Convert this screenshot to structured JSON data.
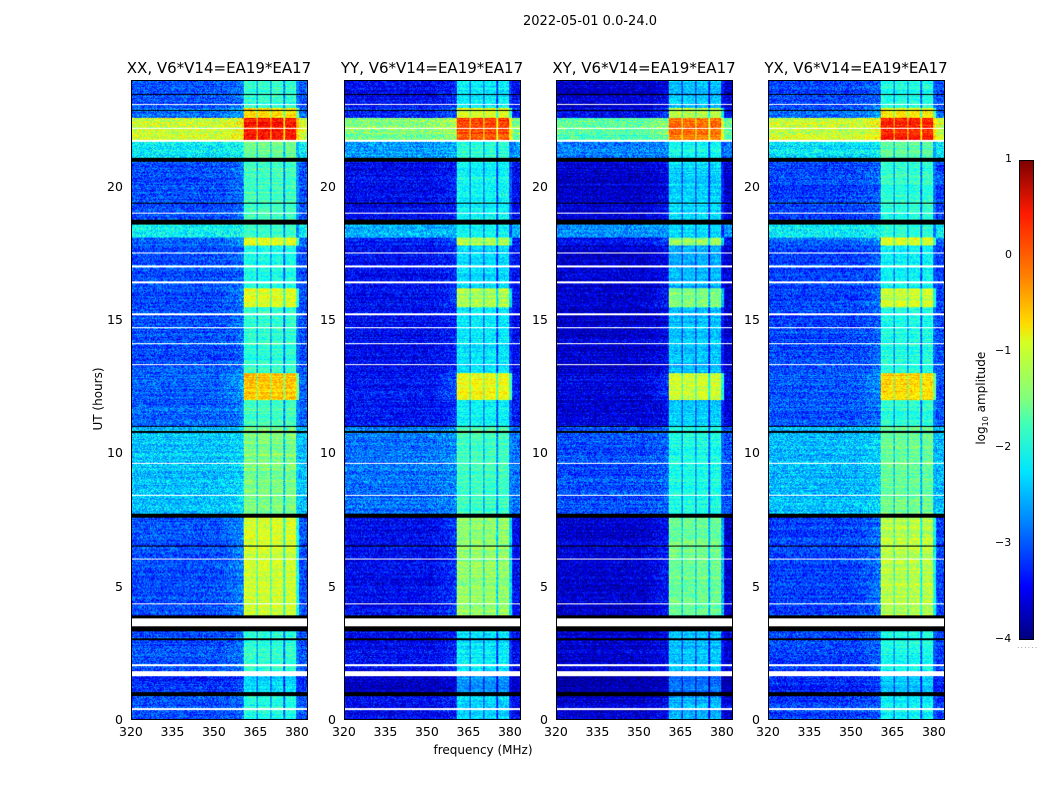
{
  "figure": {
    "suptitle": "2022-05-01 0.0-24.0",
    "xlabel": "frequency (MHz)",
    "ylabel": "UT (hours)"
  },
  "colorbar": {
    "label_prefix": "log",
    "label_sub": "10",
    "label_suffix": " amplitude",
    "range": [
      -4,
      1
    ],
    "ticks": [
      "1",
      "0",
      "−1",
      "−2",
      "−3",
      "−4"
    ],
    "tick_values": [
      1,
      0,
      -1,
      -2,
      -3,
      -4
    ],
    "colormap": "jet"
  },
  "chart_data": {
    "type": "heatmap",
    "xlim": [
      320,
      384
    ],
    "ylim": [
      0,
      24
    ],
    "x_ticks": [
      320,
      335,
      350,
      365,
      380
    ],
    "y_ticks": [
      0,
      5,
      10,
      15,
      20
    ],
    "rfi_band_MHz": [
      361,
      381
    ],
    "rfi_subbands_MHz": [
      [
        361,
        365.5
      ],
      [
        366,
        370.5
      ],
      [
        371,
        375.5
      ],
      [
        376,
        380.2
      ]
    ],
    "segments_UT": [
      {
        "t": [
          0,
          0.9
        ],
        "bg": -3.0,
        "rfi": -2.0
      },
      {
        "t": [
          1.0,
          1.6
        ],
        "bg": -3.2,
        "rfi": -2.3
      },
      {
        "t": [
          1.8,
          3.3
        ],
        "bg": -3.0,
        "rfi": -1.9
      },
      {
        "t": [
          3.9,
          7.6
        ],
        "bg": -3.0,
        "rfi": -1.1
      },
      {
        "t": [
          7.7,
          11.0
        ],
        "bg": -2.4,
        "rfi": -1.5
      },
      {
        "t": [
          11.0,
          12.0
        ],
        "bg": -2.9,
        "rfi": -1.8
      },
      {
        "t": [
          12.0,
          13.0
        ],
        "bg": -2.9,
        "rfi": -0.6
      },
      {
        "t": [
          13.0,
          15.5
        ],
        "bg": -3.0,
        "rfi": -1.9
      },
      {
        "t": [
          15.5,
          16.2
        ],
        "bg": -3.0,
        "rfi": -1.0
      },
      {
        "t": [
          16.2,
          17.8
        ],
        "bg": -3.0,
        "rfi": -2.0
      },
      {
        "t": [
          17.8,
          18.1
        ],
        "bg": -2.8,
        "rfi": -0.9
      },
      {
        "t": [
          18.1,
          18.6
        ],
        "bg": -2.1,
        "rfi": -1.8
      },
      {
        "t": [
          18.7,
          21.0
        ],
        "bg": -3.0,
        "rfi": -1.8
      },
      {
        "t": [
          21.1,
          21.7
        ],
        "bg": -2.2,
        "rfi": -1.6
      },
      {
        "t": [
          21.8,
          22.6
        ],
        "bg": -1.1,
        "rfi": 0.3
      },
      {
        "t": [
          22.6,
          23.0
        ],
        "bg": -2.8,
        "rfi": -0.7
      },
      {
        "t": [
          23.0,
          24.0
        ],
        "bg": -3.0,
        "rfi": -1.9
      }
    ],
    "flagged_UT": [
      [
        1.6,
        1.8
      ],
      [
        3.5,
        3.8
      ],
      [
        0.35,
        0.4
      ],
      [
        2.0,
        2.05
      ],
      [
        4.3,
        4.35
      ],
      [
        6.0,
        6.05
      ],
      [
        8.4,
        8.45
      ],
      [
        9.6,
        9.65
      ],
      [
        13.3,
        13.35
      ],
      [
        14.1,
        14.15
      ],
      [
        14.7,
        14.75
      ],
      [
        15.2,
        15.25
      ],
      [
        16.4,
        16.45
      ],
      [
        17.0,
        17.05
      ],
      [
        17.5,
        17.55
      ],
      [
        19.0,
        19.05
      ],
      [
        21.7,
        21.8
      ],
      [
        22.2,
        22.25
      ],
      [
        23.1,
        23.15
      ]
    ],
    "dropout_UT": [
      0.9,
      1.0,
      3.0,
      6.5,
      7.6,
      7.7,
      10.8,
      11.0,
      18.65,
      18.75,
      19.4,
      21.0,
      21.1,
      22.9,
      23.5
    ],
    "panels": [
      {
        "title": "XX, V6*V14=EA19*EA17",
        "bg_offset": 0.0,
        "rfi_offset": 0.0
      },
      {
        "title": "YY, V6*V14=EA19*EA17",
        "bg_offset": -0.4,
        "rfi_offset": -0.3
      },
      {
        "title": "XY, V6*V14=EA19*EA17",
        "bg_offset": -0.6,
        "rfi_offset": -0.5
      },
      {
        "title": "YX, V6*V14=EA19*EA17",
        "bg_offset": -0.05,
        "rfi_offset": -0.1
      }
    ]
  }
}
